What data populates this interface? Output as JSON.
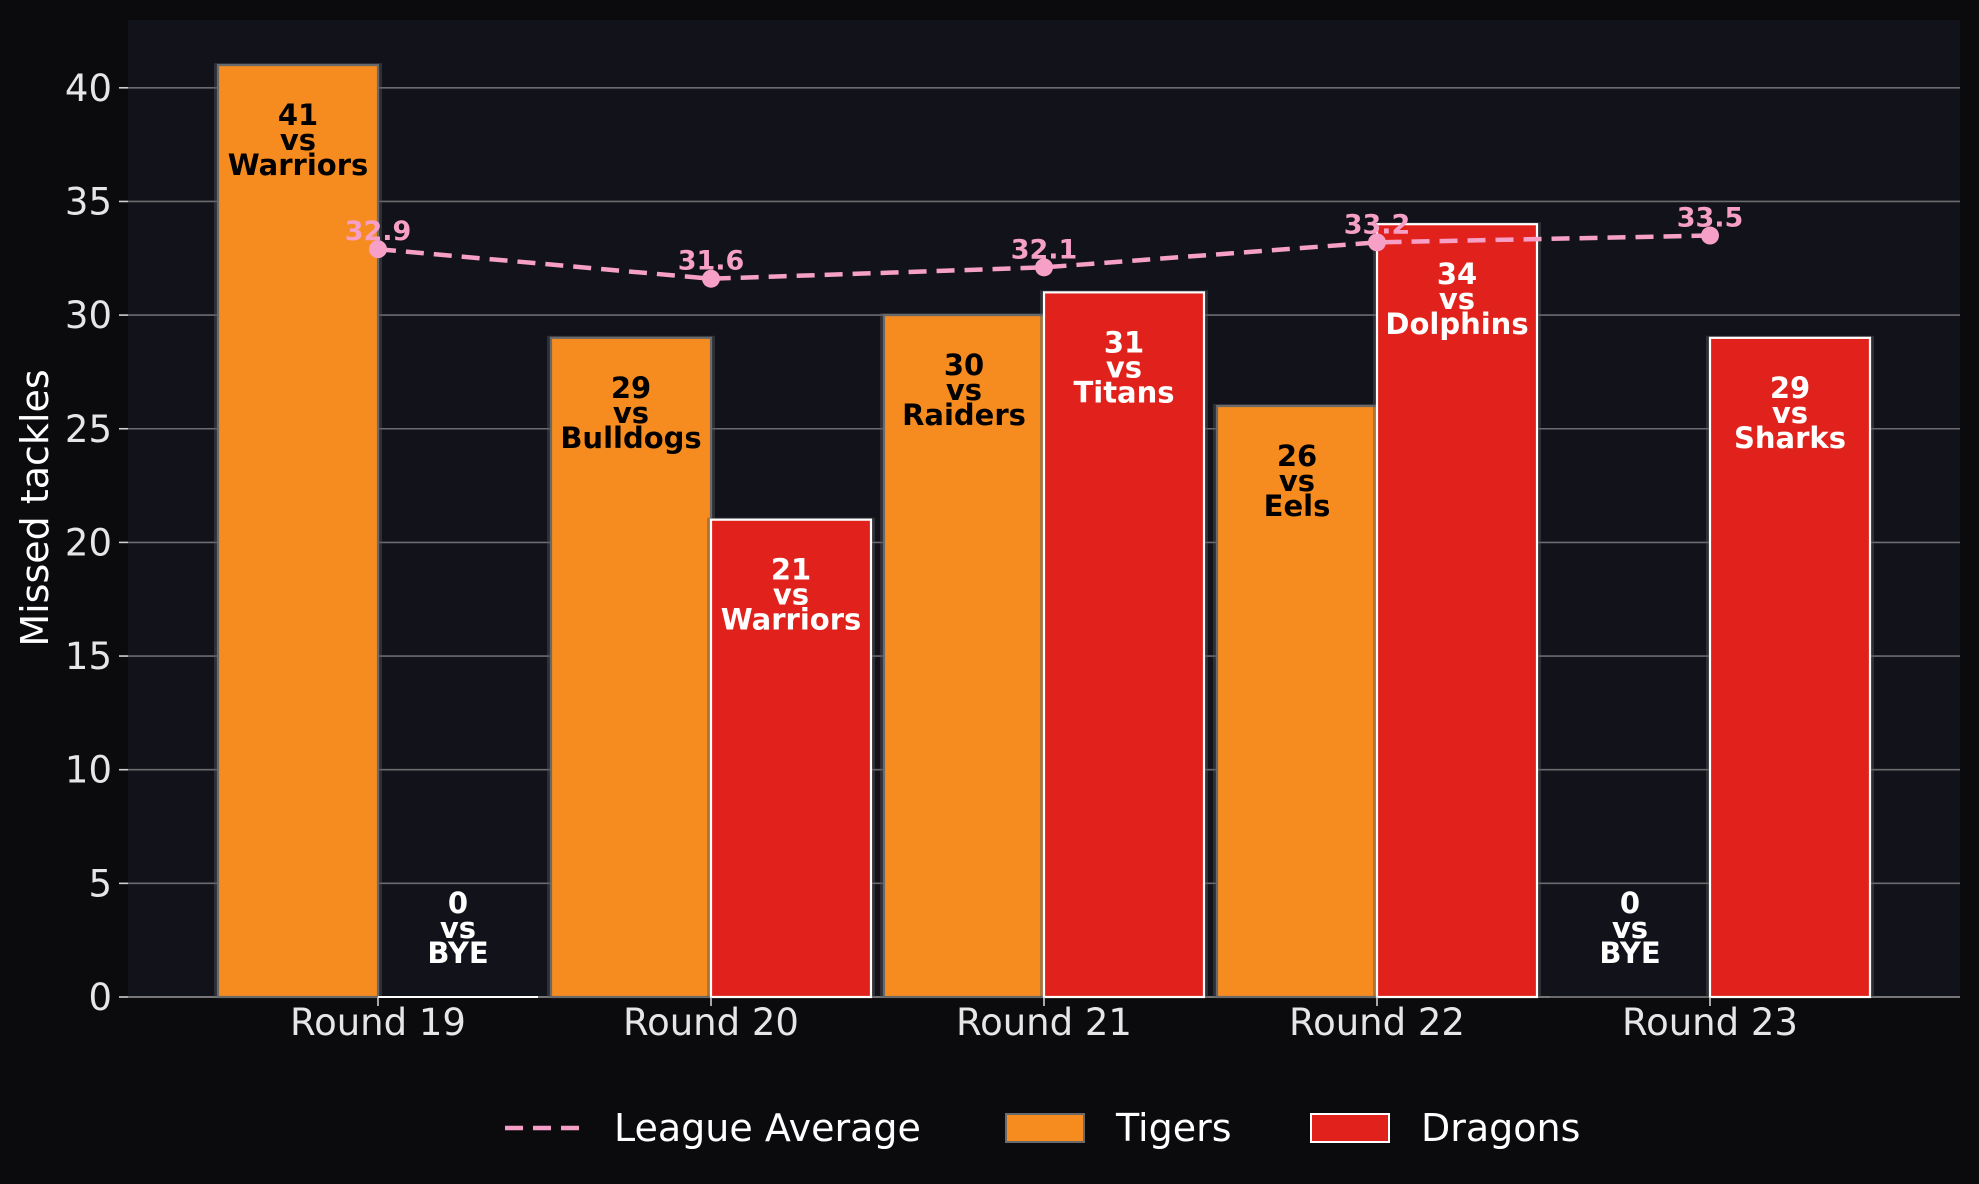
{
  "chart_data": {
    "type": "bar",
    "title": "",
    "xlabel": "",
    "ylabel": "Missed tackles",
    "ylim": [
      0,
      43
    ],
    "yticks": [
      0,
      5,
      10,
      15,
      20,
      25,
      30,
      35,
      40
    ],
    "categories": [
      "Round 19",
      "Round 20",
      "Round 21",
      "Round 22",
      "Round 23"
    ],
    "series": [
      {
        "name": "Tigers",
        "color": "#f68c1f",
        "values": [
          41,
          29,
          30,
          26,
          0
        ],
        "labels": [
          "41\nvs\nWarriors",
          "29\nvs\nBulldogs",
          "30\nvs\nRaiders",
          "26\nvs\nEels",
          "0\nvs\nBYE"
        ]
      },
      {
        "name": "Dragons",
        "color": "#e1221c",
        "values": [
          0,
          21,
          31,
          34,
          29
        ],
        "labels": [
          "0\nvs\nBYE",
          "21\nvs\nWarriors",
          "31\nvs\nTitans",
          "34\nvs\nDolphins",
          "29\nvs\nSharks"
        ]
      }
    ],
    "line": {
      "name": "League Average",
      "color": "#f6a0c8",
      "style": "dashed",
      "values": [
        32.9,
        31.6,
        32.1,
        33.2,
        33.5
      ],
      "labels": [
        "32.9",
        "31.6",
        "32.1",
        "33.2",
        "33.5"
      ]
    },
    "grid": true,
    "legend": "bottom-center"
  }
}
